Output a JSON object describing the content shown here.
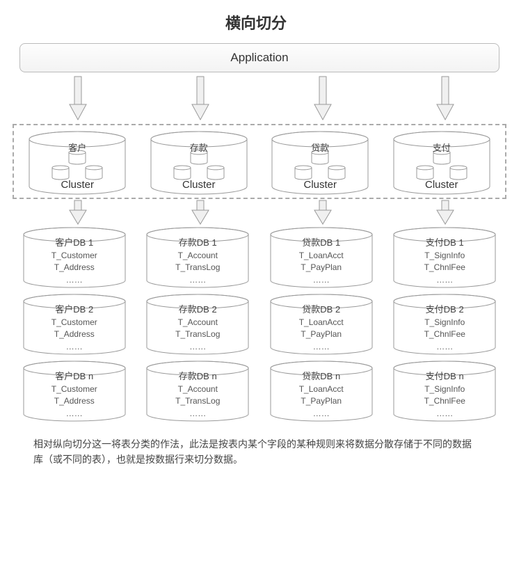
{
  "title": "横向切分",
  "application_label": "Application",
  "cluster_label": "Cluster",
  "ellipsis": "……",
  "columns": [
    {
      "name": "客户",
      "db_prefix": "客户DB",
      "tables": [
        "T_Customer",
        "T_Address"
      ]
    },
    {
      "name": "存款",
      "db_prefix": "存款DB",
      "tables": [
        "T_Account",
        "T_TransLog"
      ]
    },
    {
      "name": "贷款",
      "db_prefix": "贷款DB",
      "tables": [
        "T_LoanAcct",
        "T_PayPlan"
      ]
    },
    {
      "name": "支付",
      "db_prefix": "支付DB",
      "tables": [
        "T_SignInfo",
        "T_ChnlFee"
      ]
    }
  ],
  "db_suffixes": [
    "1",
    "2",
    "n"
  ],
  "footer": "相对纵向切分这一将表分类的作法，此法是按表内某个字段的某种规则来将数据分散存储于不同的数据库（或不同的表），也就是按数据行来切分数据。",
  "style": {
    "type": "flowchart",
    "background_color": "#ffffff",
    "stroke_color": "#999999",
    "dashed_color": "#aaaaaa",
    "text_color": "#444444",
    "arrow_fill": "#f0f0f0",
    "cylinder_fill": "#ffffff",
    "title_fontsize": 22,
    "label_fontsize": 13,
    "db_fontsize": 12
  }
}
